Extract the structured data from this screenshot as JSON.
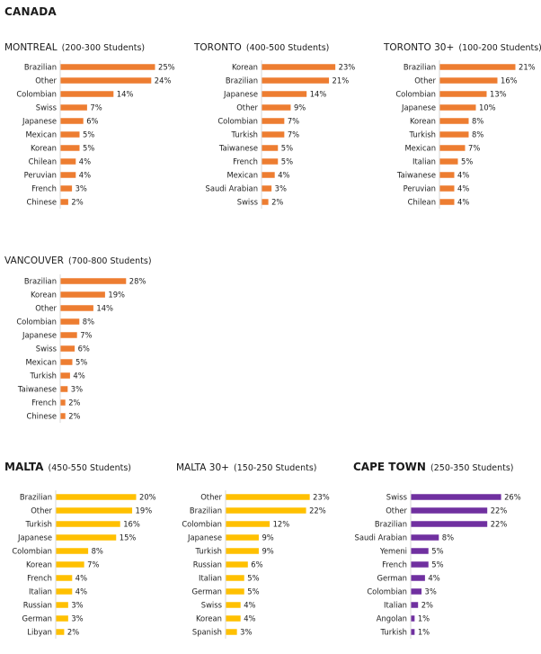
{
  "section_title": "CANADA",
  "colors": {
    "orange": "#ED7D31",
    "gold": "#FFC000",
    "purple": "#7030A0",
    "axis": "#D9D9D9"
  },
  "chart_data": [
    {
      "type": "bar",
      "orientation": "horizontal",
      "title": "MONTREAL",
      "subtitle": "(200-300 Students)",
      "categories": [
        "Brazilian",
        "Other",
        "Colombian",
        "Swiss",
        "Japanese",
        "Mexican",
        "Korean",
        "Chilean",
        "Peruvian",
        "French",
        "Chinese"
      ],
      "values": [
        25,
        24,
        14,
        7,
        6,
        5,
        5,
        4,
        4,
        3,
        2
      ],
      "value_labels": [
        "25%",
        "24%",
        "14%",
        "7%",
        "6%",
        "5%",
        "5%",
        "4%",
        "4%",
        "3%",
        "2%"
      ],
      "color": "#ED7D31"
    },
    {
      "type": "bar",
      "orientation": "horizontal",
      "title": "TORONTO",
      "subtitle": "(400-500 Students)",
      "categories": [
        "Korean",
        "Brazilian",
        "Japanese",
        "Other",
        "Colombian",
        "Turkish",
        "Taiwanese",
        "French",
        "Mexican",
        "Saudi Arabian",
        "Swiss"
      ],
      "values": [
        23,
        21,
        14,
        9,
        7,
        7,
        5,
        5,
        4,
        3,
        2
      ],
      "value_labels": [
        "23%",
        "21%",
        "14%",
        "9%",
        "7%",
        "7%",
        "5%",
        "5%",
        "4%",
        "3%",
        "2%"
      ],
      "color": "#ED7D31"
    },
    {
      "type": "bar",
      "orientation": "horizontal",
      "title": "TORONTO 30+",
      "subtitle": "(100-200 Students)",
      "categories": [
        "Brazilian",
        "Other",
        "Colombian",
        "Japanese",
        "Korean",
        "Turkish",
        "Mexican",
        "Italian",
        "Taiwanese",
        "Peruvian",
        "Chilean"
      ],
      "values": [
        21,
        16,
        13,
        10,
        8,
        8,
        7,
        5,
        4,
        4,
        4
      ],
      "value_labels": [
        "21%",
        "16%",
        "13%",
        "10%",
        "8%",
        "8%",
        "7%",
        "5%",
        "4%",
        "4%",
        "4%"
      ],
      "color": "#ED7D31"
    },
    {
      "type": "bar",
      "orientation": "horizontal",
      "title": "VANCOUVER",
      "subtitle": "(700-800 Students)",
      "categories": [
        "Brazilian",
        "Korean",
        "Other",
        "Colombian",
        "Japanese",
        "Swiss",
        "Mexican",
        "Turkish",
        "Taiwanese",
        "French",
        "Chinese"
      ],
      "values": [
        28,
        19,
        14,
        8,
        7,
        6,
        5,
        4,
        3,
        2,
        2
      ],
      "value_labels": [
        "28%",
        "19%",
        "14%",
        "8%",
        "7%",
        "6%",
        "5%",
        "4%",
        "3%",
        "2%",
        "2%"
      ],
      "color": "#ED7D31"
    },
    {
      "type": "bar",
      "orientation": "horizontal",
      "title": "MALTA",
      "subtitle": "(450-550 Students)",
      "categories": [
        "Brazilian",
        "Other",
        "Turkish",
        "Japanese",
        "Colombian",
        "Korean",
        "French",
        "Italian",
        "Russian",
        "German",
        "Libyan"
      ],
      "values": [
        20,
        19,
        16,
        15,
        8,
        7,
        4,
        4,
        3,
        3,
        2
      ],
      "value_labels": [
        "20%",
        "19%",
        "16%",
        "15%",
        "8%",
        "7%",
        "4%",
        "4%",
        "3%",
        "3%",
        "2%"
      ],
      "color": "#FFC000"
    },
    {
      "type": "bar",
      "orientation": "horizontal",
      "title": "MALTA 30+",
      "subtitle": "(150-250 Students)",
      "categories": [
        "Other",
        "Brazilian",
        "Colombian",
        "Japanese",
        "Turkish",
        "Russian",
        "Italian",
        "German",
        "Swiss",
        "Korean",
        "Spanish"
      ],
      "values": [
        23,
        22,
        12,
        9,
        9,
        6,
        5,
        5,
        4,
        4,
        3
      ],
      "value_labels": [
        "23%",
        "22%",
        "12%",
        "9%",
        "9%",
        "6%",
        "5%",
        "5%",
        "4%",
        "4%",
        "3%"
      ],
      "color": "#FFC000"
    },
    {
      "type": "bar",
      "orientation": "horizontal",
      "title": "CAPE TOWN",
      "subtitle": "(250-350 Students)",
      "categories": [
        "Swiss",
        "Other",
        "Brazilian",
        "Saudi Arabian",
        "Yemeni",
        "French",
        "German",
        "Colombian",
        "Italian",
        "Angolan",
        "Turkish"
      ],
      "values": [
        26,
        22,
        22,
        8,
        5,
        5,
        4,
        3,
        2,
        1,
        1
      ],
      "value_labels": [
        "26%",
        "22%",
        "22%",
        "8%",
        "5%",
        "5%",
        "4%",
        "3%",
        "2%",
        "1%",
        "1%"
      ],
      "color": "#7030A0"
    }
  ]
}
